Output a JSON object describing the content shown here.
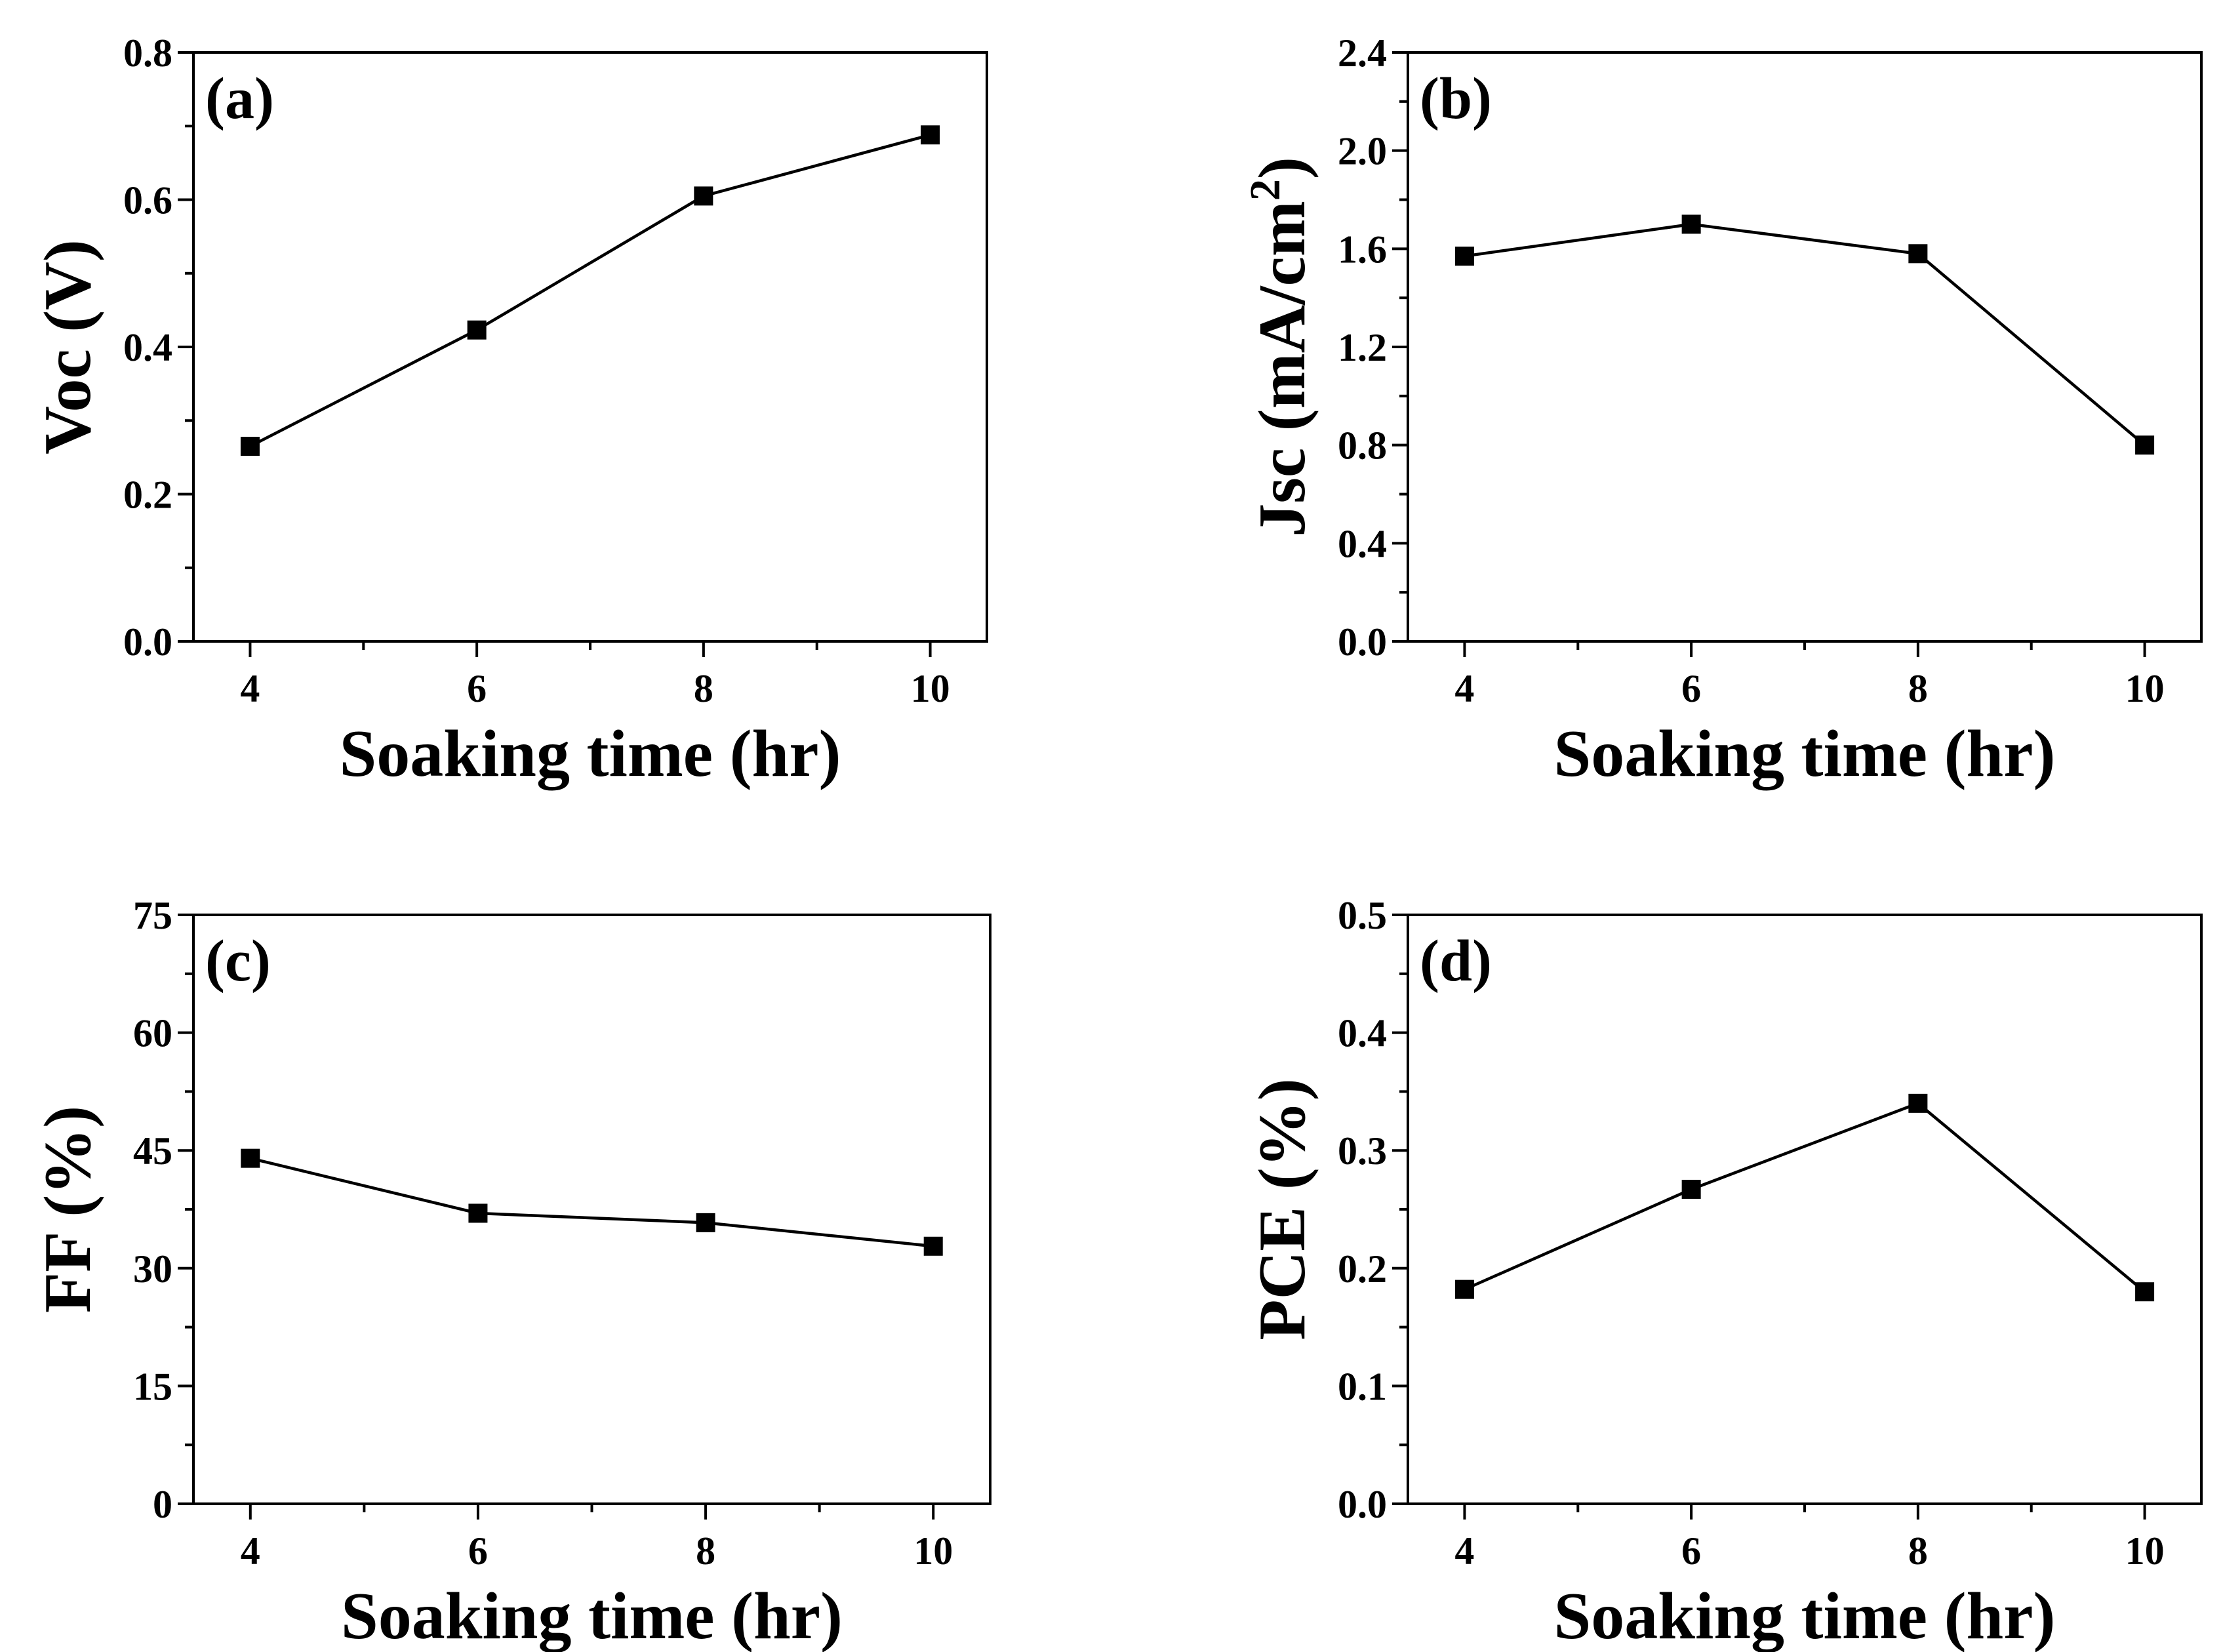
{
  "chart_data": [
    {
      "type": "line",
      "panel_label": "(a)",
      "xlabel": "Soaking time (hr)",
      "ylabel": "Voc (V)",
      "x": [
        4,
        6,
        8,
        10
      ],
      "values": [
        0.265,
        0.423,
        0.605,
        0.688
      ],
      "xlim": [
        3.5,
        10.5
      ],
      "ylim": [
        0.0,
        0.8
      ],
      "x_ticks": [
        "4",
        "6",
        "8",
        "10"
      ],
      "x_tick_values": [
        4,
        6,
        8,
        10
      ],
      "x_minor_ticks": [
        5,
        7,
        9
      ],
      "y_ticks": [
        "0.0",
        "0.2",
        "0.4",
        "0.6",
        "0.8"
      ],
      "y_tick_values": [
        0.0,
        0.2,
        0.4,
        0.6,
        0.8
      ],
      "y_minor_ticks": [
        0.1,
        0.3,
        0.5,
        0.7
      ],
      "marker": "filled-square",
      "color": "#000000"
    },
    {
      "type": "line",
      "panel_label": "(b)",
      "xlabel": "Soaking time (hr)",
      "ylabel": "Jsc (mA/cm",
      "ylabel_superscript": "2",
      "ylabel_suffix": ")",
      "x": [
        4,
        6,
        8,
        10
      ],
      "values": [
        1.57,
        1.7,
        1.58,
        0.8
      ],
      "xlim": [
        3.5,
        10.5
      ],
      "ylim": [
        0.0,
        2.4
      ],
      "x_ticks": [
        "4",
        "6",
        "8",
        "10"
      ],
      "x_tick_values": [
        4,
        6,
        8,
        10
      ],
      "x_minor_ticks": [
        5,
        7,
        9
      ],
      "y_ticks": [
        "0.0",
        "0.4",
        "0.8",
        "1.2",
        "1.6",
        "2.0",
        "2.4"
      ],
      "y_tick_values": [
        0.0,
        0.4,
        0.8,
        1.2,
        1.6,
        2.0,
        2.4
      ],
      "y_minor_ticks": [
        0.2,
        0.6,
        1.0,
        1.4,
        1.8,
        2.2
      ],
      "marker": "filled-square",
      "color": "#000000"
    },
    {
      "type": "line",
      "panel_label": "(c)",
      "xlabel": "Soaking time (hr)",
      "ylabel": "FF (%)",
      "x": [
        4,
        6,
        8,
        10
      ],
      "values": [
        44,
        37,
        35.8,
        32.8
      ],
      "xlim": [
        3.5,
        10.5
      ],
      "ylim": [
        0,
        75
      ],
      "x_ticks": [
        "4",
        "6",
        "8",
        "10"
      ],
      "x_tick_values": [
        4,
        6,
        8,
        10
      ],
      "x_minor_ticks": [
        5,
        7,
        9
      ],
      "y_ticks": [
        "0",
        "15",
        "30",
        "45",
        "60",
        "75"
      ],
      "y_tick_values": [
        0,
        15,
        30,
        45,
        60,
        75
      ],
      "y_minor_ticks": [
        7.5,
        22.5,
        37.5,
        52.5,
        67.5
      ],
      "marker": "filled-square",
      "color": "#000000"
    },
    {
      "type": "line",
      "panel_label": "(d)",
      "xlabel": "Soaking time (hr)",
      "ylabel": "PCE (%)",
      "x": [
        4,
        6,
        8,
        10
      ],
      "values": [
        0.182,
        0.267,
        0.34,
        0.18
      ],
      "xlim": [
        3.5,
        10.5
      ],
      "ylim": [
        0.0,
        0.5
      ],
      "x_ticks": [
        "4",
        "6",
        "8",
        "10"
      ],
      "x_tick_values": [
        4,
        6,
        8,
        10
      ],
      "x_minor_ticks": [
        5,
        7,
        9
      ],
      "y_ticks": [
        "0.0",
        "0.1",
        "0.2",
        "0.3",
        "0.4",
        "0.5"
      ],
      "y_tick_values": [
        0.0,
        0.1,
        0.2,
        0.3,
        0.4,
        0.5
      ],
      "y_minor_ticks": [
        0.05,
        0.15,
        0.25,
        0.35,
        0.45
      ],
      "marker": "filled-square",
      "color": "#000000"
    }
  ]
}
